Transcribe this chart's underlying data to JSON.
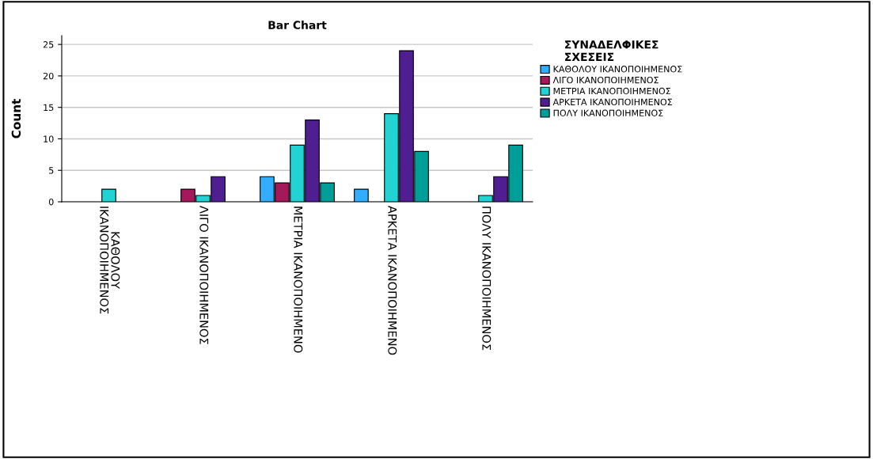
{
  "chart_data": {
    "type": "bar",
    "title": "Bar Chart",
    "ylabel": "Count",
    "legend_title": "ΣΥΝΑΔΕΛΦΙΚΕΣ\nΣΧΕΣΕΙΣ",
    "categories": [
      "ΚΑΘΟΛΟΥ\nΙΚΑΝΟΠΟΙΗΜΕΝΟΣ",
      "ΛΙΓΟ ΙΚΑΝΟΠΟΙΗΜΕΝΟΣ",
      "ΜΕΤΡΙΑ ΙΚΑΝΟΠΟΙΗΜΕΝΟ",
      "ΑΡΚΕΤΑ ΙΚΑΝΟΠΟΙΗΜΕΝΟ",
      "ΠΟΛΥ ΙΚΑΝΟΠΟΙΗΜΕΝΟΣ"
    ],
    "series": [
      {
        "name": "ΚΑΘΟΛΟΥ ΙΚΑΝΟΠΟΙΗΜΕΝΟΣ",
        "color": "#33adff",
        "values": [
          null,
          null,
          4,
          2,
          null
        ]
      },
      {
        "name": "ΛΙΓΟ ΙΚΑΝΟΠΟΙΗΜΕΝΟΣ",
        "color": "#a3195b",
        "values": [
          null,
          2,
          3,
          null,
          null
        ]
      },
      {
        "name": "ΜΕΤΡΙΑ ΙΚΑΝΟΠΟΙΗΜΕΝΟΣ",
        "color": "#21d3d3",
        "values": [
          2,
          1,
          9,
          14,
          1
        ]
      },
      {
        "name": "ΑΡΚΕΤΑ ΙΚΑΝΟΠΟΙΗΜΕΝΟΣ",
        "color": "#4f1f91",
        "values": [
          null,
          4,
          13,
          24,
          4
        ]
      },
      {
        "name": "ΠΟΛΥ ΙΚΑΝΟΠΟΙΗΜΕΝΟΣ",
        "color": "#009e99",
        "values": [
          null,
          null,
          3,
          8,
          9
        ]
      }
    ],
    "ylim": [
      0,
      26.4
    ],
    "yticks": [
      0,
      5,
      10,
      15,
      20,
      25
    ],
    "grid": "y",
    "legend": "right"
  }
}
